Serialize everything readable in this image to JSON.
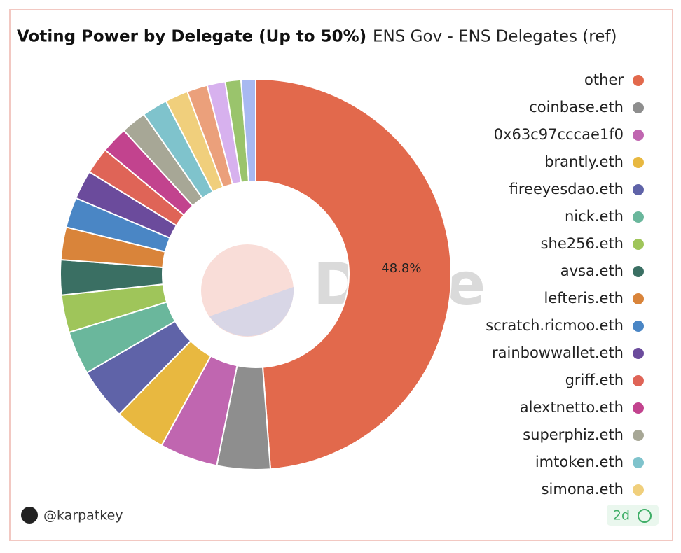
{
  "chart_data": {
    "type": "pie",
    "title": "Voting Power by Delegate (Up to 50%)",
    "subtitle": "ENS Gov - ENS Delegates (ref)",
    "categories": [
      "other",
      "coinbase.eth",
      "0x63c97cccae1f0",
      "brantly.eth",
      "fireeyesdao.eth",
      "nick.eth",
      "she256.eth",
      "avsa.eth",
      "lefteris.eth",
      "scratch.ricmoo.eth",
      "rainbowwallet.eth",
      "griff.eth",
      "alextnetto.eth",
      "superphiz.eth",
      "imtoken.eth",
      "simona.eth",
      null,
      null,
      null,
      null
    ],
    "values": [
      48.8,
      4.4,
      4.8,
      4.3,
      4.3,
      3.6,
      3.1,
      2.9,
      2.7,
      2.5,
      2.4,
      2.2,
      2.2,
      2.1,
      2.1,
      1.9,
      1.7,
      1.5,
      1.3,
      1.2
    ],
    "value_labels": [
      "48.8%",
      null,
      null,
      null,
      null,
      null,
      null,
      null,
      null,
      null,
      null,
      null,
      null,
      null,
      null,
      null,
      null,
      null,
      null,
      null
    ],
    "colors": [
      "#e2694c",
      "#8e8e8e",
      "#c066b0",
      "#e8b840",
      "#5f63a8",
      "#6ab79c",
      "#9fc55a",
      "#3a6f63",
      "#d9843a",
      "#4a86c5",
      "#6b4b9c",
      "#df6457",
      "#c2438e",
      "#a7a796",
      "#7fc3cc",
      "#f0cf7c",
      "#eba07b",
      "#d7b1ee",
      "#9ac46c",
      "#a8b9f1"
    ],
    "watermark": "Dune",
    "author": "@karpatkey",
    "age": "2d"
  }
}
